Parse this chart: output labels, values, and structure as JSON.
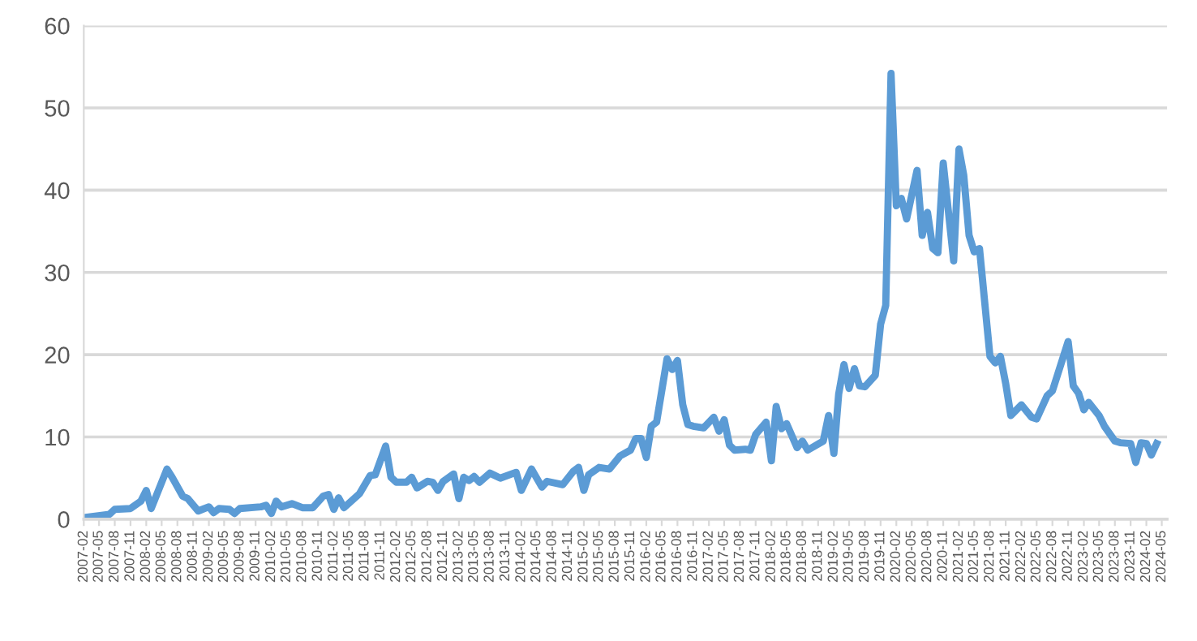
{
  "chart_data": {
    "type": "line",
    "x": [
      "2007-02",
      "2007-07",
      "2007-08",
      "2007-11",
      "2008-01",
      "2008-02",
      "2008-03",
      "2008-06",
      "2008-07",
      "2008-09",
      "2008-10",
      "2008-12",
      "2009-02",
      "2009-03",
      "2009-04",
      "2009-06",
      "2009-07",
      "2009-08",
      "2009-12",
      "2010-01",
      "2010-02",
      "2010-03",
      "2010-04",
      "2010-06",
      "2010-08",
      "2010-10",
      "2010-12",
      "2011-01",
      "2011-02",
      "2011-03",
      "2011-04",
      "2011-07",
      "2011-09",
      "2011-10",
      "2011-12",
      "2012-01",
      "2012-02",
      "2012-04",
      "2012-05",
      "2012-06",
      "2012-08",
      "2012-09",
      "2012-10",
      "2012-11",
      "2013-01",
      "2013-02",
      "2013-03",
      "2013-04",
      "2013-05",
      "2013-06",
      "2013-08",
      "2013-10",
      "2014-01",
      "2014-02",
      "2014-04",
      "2014-06",
      "2014-07",
      "2014-10",
      "2014-12",
      "2015-01",
      "2015-02",
      "2015-03",
      "2015-05",
      "2015-07",
      "2015-09",
      "2015-11",
      "2015-12",
      "2016-01",
      "2016-02",
      "2016-03",
      "2016-04",
      "2016-06",
      "2016-07",
      "2016-08",
      "2016-09",
      "2016-10",
      "2016-11",
      "2017-01",
      "2017-03",
      "2017-04",
      "2017-05",
      "2017-06",
      "2017-07",
      "2017-09",
      "2017-10",
      "2017-11",
      "2018-01",
      "2018-02",
      "2018-03",
      "2018-04",
      "2018-05",
      "2018-07",
      "2018-08",
      "2018-09",
      "2018-12",
      "2019-01",
      "2019-02",
      "2019-03",
      "2019-04",
      "2019-05",
      "2019-06",
      "2019-07",
      "2019-08",
      "2019-10",
      "2019-11",
      "2019-12",
      "2020-01",
      "2020-02",
      "2020-03",
      "2020-04",
      "2020-06",
      "2020-07",
      "2020-08",
      "2020-09",
      "2020-10",
      "2020-11",
      "2021-01",
      "2021-02",
      "2021-03",
      "2021-04",
      "2021-05",
      "2021-06",
      "2021-08",
      "2021-09",
      "2021-10",
      "2021-11",
      "2021-12",
      "2022-02",
      "2022-04",
      "2022-05",
      "2022-07",
      "2022-08",
      "2022-11",
      "2022-12",
      "2023-01",
      "2023-02",
      "2023-03",
      "2023-05",
      "2023-06",
      "2023-08",
      "2023-09",
      "2023-11",
      "2023-12",
      "2024-01",
      "2024-02",
      "2024-03",
      "2024-04"
    ],
    "series": [
      {
        "color": "#5b9bd5",
        "values": [
          0.2,
          0.6,
          1.2,
          1.3,
          2.2,
          3.5,
          1.3,
          6.1,
          5.1,
          2.8,
          2.5,
          1.0,
          1.5,
          0.8,
          1.3,
          1.2,
          0.7,
          1.3,
          1.5,
          1.7,
          0.7,
          2.2,
          1.5,
          1.9,
          1.4,
          1.4,
          2.8,
          3.0,
          1.2,
          2.6,
          1.4,
          3.1,
          5.3,
          5.4,
          8.9,
          5.1,
          4.5,
          4.5,
          5.1,
          3.8,
          4.6,
          4.5,
          3.5,
          4.6,
          5.5,
          2.5,
          5.1,
          4.7,
          5.2,
          4.5,
          5.6,
          5.0,
          5.7,
          3.5,
          6.1,
          3.9,
          4.6,
          4.2,
          5.8,
          6.3,
          3.5,
          5.4,
          6.3,
          6.1,
          7.7,
          8.4,
          9.8,
          9.8,
          7.5,
          11.3,
          11.8,
          19.5,
          18.2,
          19.3,
          13.9,
          11.5,
          11.3,
          11.1,
          12.4,
          10.7,
          12.1,
          9.0,
          8.4,
          8.5,
          8.4,
          10.3,
          11.8,
          7.1,
          13.7,
          11.0,
          11.6,
          8.7,
          9.5,
          8.4,
          9.5,
          12.6,
          8.0,
          15.2,
          18.8,
          15.9,
          18.3,
          16.2,
          16.1,
          17.5,
          23.7,
          26.0,
          54.2,
          38.1,
          39.0,
          36.5,
          42.4,
          34.5,
          37.3,
          32.9,
          32.4,
          43.3,
          31.4,
          45.0,
          41.8,
          34.5,
          32.5,
          32.9,
          19.8,
          19.0,
          19.8,
          16.5,
          12.6,
          13.9,
          12.4,
          12.2,
          15.0,
          15.6,
          21.6,
          16.2,
          15.3,
          13.3,
          14.2,
          12.6,
          11.3,
          9.5,
          9.3,
          9.2,
          6.9,
          9.3,
          9.2,
          7.8,
          9.2
        ]
      }
    ],
    "xlim": [
      "2007-02",
      "2024-06"
    ],
    "xticks": [
      "2007-02",
      "2007-05",
      "2007-08",
      "2007-11",
      "2008-02",
      "2008-05",
      "2008-08",
      "2008-11",
      "2009-02",
      "2009-05",
      "2009-08",
      "2009-11",
      "2010-02",
      "2010-05",
      "2010-08",
      "2010-11",
      "2011-02",
      "2011-05",
      "2011-08",
      "2011-11",
      "2012-02",
      "2012-05",
      "2012-08",
      "2012-11",
      "2013-02",
      "2013-05",
      "2013-08",
      "2013-11",
      "2014-02",
      "2014-05",
      "2014-08",
      "2014-11",
      "2015-02",
      "2015-05",
      "2015-08",
      "2015-11",
      "2016-02",
      "2016-05",
      "2016-08",
      "2016-11",
      "2017-02",
      "2017-05",
      "2017-08",
      "2017-11",
      "2018-02",
      "2018-05",
      "2018-08",
      "2018-11",
      "2019-02",
      "2019-05",
      "2019-08",
      "2019-11",
      "2020-02",
      "2020-05",
      "2020-08",
      "2020-11",
      "2021-02",
      "2021-05",
      "2021-08",
      "2021-11",
      "2022-02",
      "2022-05",
      "2022-08",
      "2022-11",
      "2023-02",
      "2023-05",
      "2023-08",
      "2023-11",
      "2024-02",
      "2024-05"
    ],
    "ylim": [
      0,
      60
    ],
    "yticks": [
      0,
      10,
      20,
      30,
      40,
      50,
      60
    ],
    "grid": "y",
    "marker": "none",
    "line_style": "solid"
  }
}
